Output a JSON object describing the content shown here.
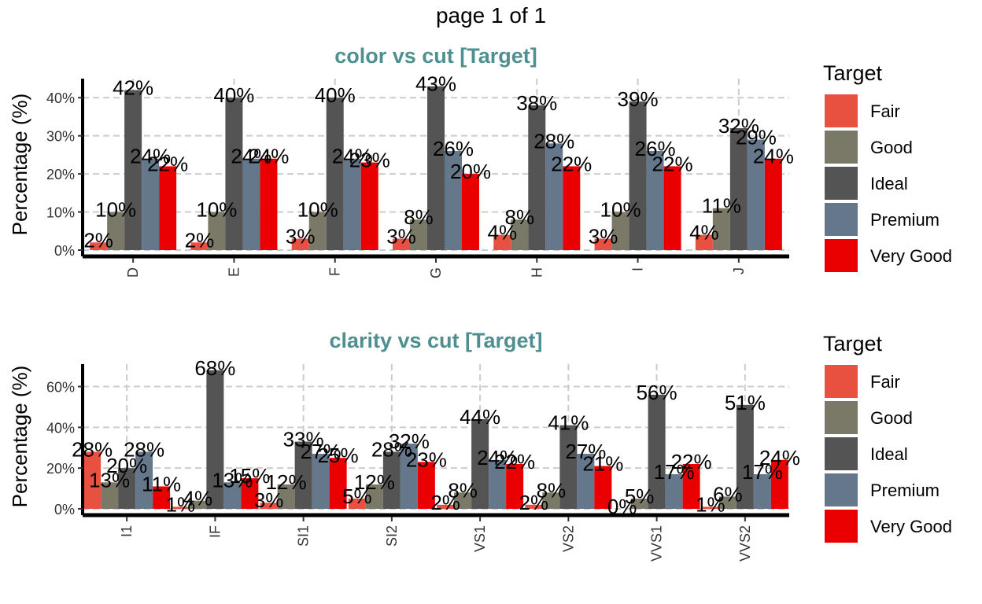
{
  "page_title": "page 1 of 1",
  "colors": {
    "Fair": "#E8503F",
    "Good": "#7A7866",
    "Ideal": "#545454",
    "Premium": "#65778A",
    "Very Good": "#EA0000",
    "title": "#4F8F8F"
  },
  "chart_data": [
    {
      "type": "bar",
      "title": "color vs cut [Target]",
      "ylabel": "Percentage (%)",
      "xlabel": "",
      "categories": [
        "D",
        "E",
        "F",
        "G",
        "H",
        "I",
        "J"
      ],
      "yticks": [
        0,
        10,
        20,
        30,
        40
      ],
      "ytick_labels": [
        "0%",
        "10%",
        "20%",
        "30%",
        "40%"
      ],
      "ylim": [
        0,
        45
      ],
      "grid": true,
      "legend": {
        "title": "Target",
        "position": "right",
        "labels": [
          "Fair",
          "Good",
          "Ideal",
          "Premium",
          "Very Good"
        ]
      },
      "series": [
        {
          "name": "Fair",
          "values": [
            2,
            2,
            3,
            3,
            4,
            3,
            4
          ],
          "labels": [
            "2%",
            "2%",
            "3%",
            "3%",
            "4%",
            "3%",
            "4%"
          ]
        },
        {
          "name": "Good",
          "values": [
            10,
            10,
            10,
            8,
            8,
            10,
            11
          ],
          "labels": [
            "10%",
            "10%",
            "10%",
            "8%",
            "8%",
            "10%",
            "11%"
          ]
        },
        {
          "name": "Ideal",
          "values": [
            42,
            40,
            40,
            43,
            38,
            39,
            32
          ],
          "labels": [
            "42%",
            "40%",
            "40%",
            "43%",
            "38%",
            "39%",
            "32%"
          ]
        },
        {
          "name": "Premium",
          "values": [
            24,
            24,
            24,
            26,
            28,
            26,
            29
          ],
          "labels": [
            "24%",
            "24%",
            "24%",
            "26%",
            "28%",
            "26%",
            "29%"
          ]
        },
        {
          "name": "Very Good",
          "values": [
            22,
            24,
            23,
            20,
            22,
            22,
            24
          ],
          "labels": [
            "22%",
            "24%",
            "23%",
            "20%",
            "22%",
            "22%",
            "24%"
          ]
        }
      ]
    },
    {
      "type": "bar",
      "title": "clarity vs cut [Target]",
      "ylabel": "Percentage (%)",
      "xlabel": "",
      "categories": [
        "I1",
        "IF",
        "SI1",
        "SI2",
        "VS1",
        "VS2",
        "VVS1",
        "VVS2"
      ],
      "yticks": [
        0,
        20,
        40,
        60
      ],
      "ytick_labels": [
        "0%",
        "20%",
        "40%",
        "60%"
      ],
      "ylim": [
        0,
        71
      ],
      "grid": true,
      "legend": {
        "title": "Target",
        "position": "right",
        "labels": [
          "Fair",
          "Good",
          "Ideal",
          "Premium",
          "Very Good"
        ]
      },
      "series": [
        {
          "name": "Fair",
          "values": [
            28,
            1,
            3,
            5,
            2,
            2,
            0,
            1
          ],
          "labels": [
            "28%",
            "1%",
            "3%",
            "5%",
            "2%",
            "2%",
            "0%",
            "1%"
          ]
        },
        {
          "name": "Good",
          "values": [
            13,
            4,
            12,
            12,
            8,
            8,
            5,
            6
          ],
          "labels": [
            "13%",
            "4%",
            "12%",
            "12%",
            "8%",
            "8%",
            "5%",
            "6%"
          ]
        },
        {
          "name": "Ideal",
          "values": [
            20,
            68,
            33,
            28,
            44,
            41,
            56,
            51
          ],
          "labels": [
            "20%",
            "68%",
            "33%",
            "28%",
            "44%",
            "41%",
            "56%",
            "51%"
          ]
        },
        {
          "name": "Premium",
          "values": [
            28,
            13,
            27,
            32,
            24,
            27,
            17,
            17
          ],
          "labels": [
            "28%",
            "13%",
            "27%",
            "32%",
            "24%",
            "27%",
            "17%",
            "17%"
          ]
        },
        {
          "name": "Very Good",
          "values": [
            11,
            15,
            25,
            23,
            22,
            21,
            22,
            24
          ],
          "labels": [
            "11%",
            "15%",
            "25%",
            "23%",
            "22%",
            "21%",
            "22%",
            "24%"
          ]
        }
      ]
    }
  ]
}
